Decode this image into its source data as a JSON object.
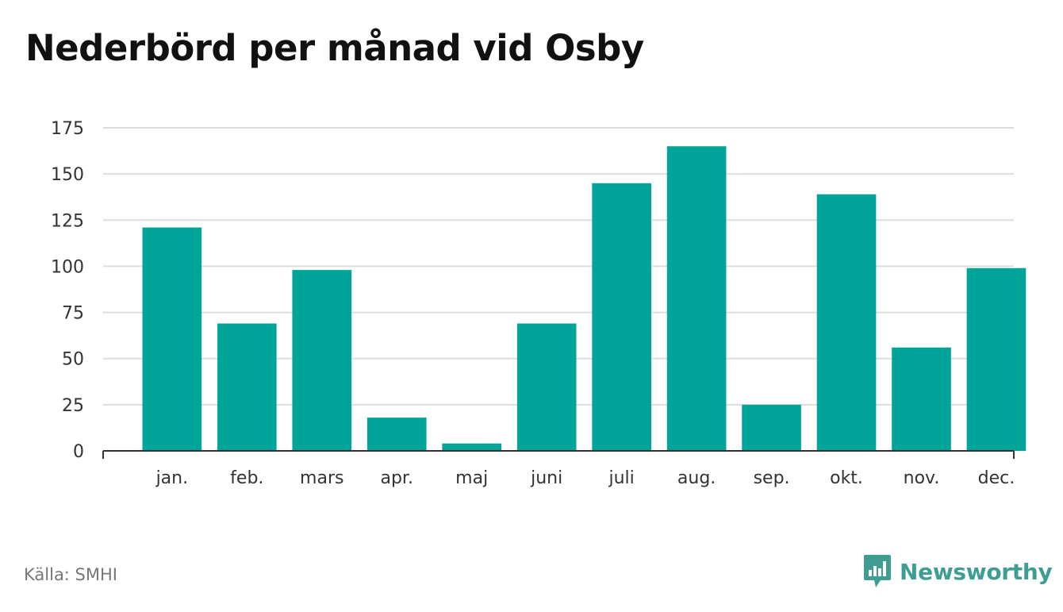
{
  "title": "Nederbörd per månad vid Osby",
  "source": "Källa: SMHI",
  "brand": "Newsworthy",
  "colors": {
    "bar": "#00a499",
    "grid": "#dddddd",
    "axis": "#333333",
    "brand": "#3f9e93"
  },
  "chart_data": {
    "type": "bar",
    "categories": [
      "jan.",
      "feb.",
      "mars",
      "apr.",
      "maj",
      "juni",
      "juli",
      "aug.",
      "sep.",
      "okt.",
      "nov.",
      "dec."
    ],
    "values": [
      121,
      69,
      98,
      18,
      4,
      69,
      145,
      165,
      25,
      139,
      56,
      99
    ],
    "ylim": [
      0,
      175
    ],
    "yticks": [
      0,
      25,
      50,
      75,
      100,
      125,
      150,
      175
    ],
    "grid": true,
    "xlabel": "",
    "ylabel": ""
  }
}
